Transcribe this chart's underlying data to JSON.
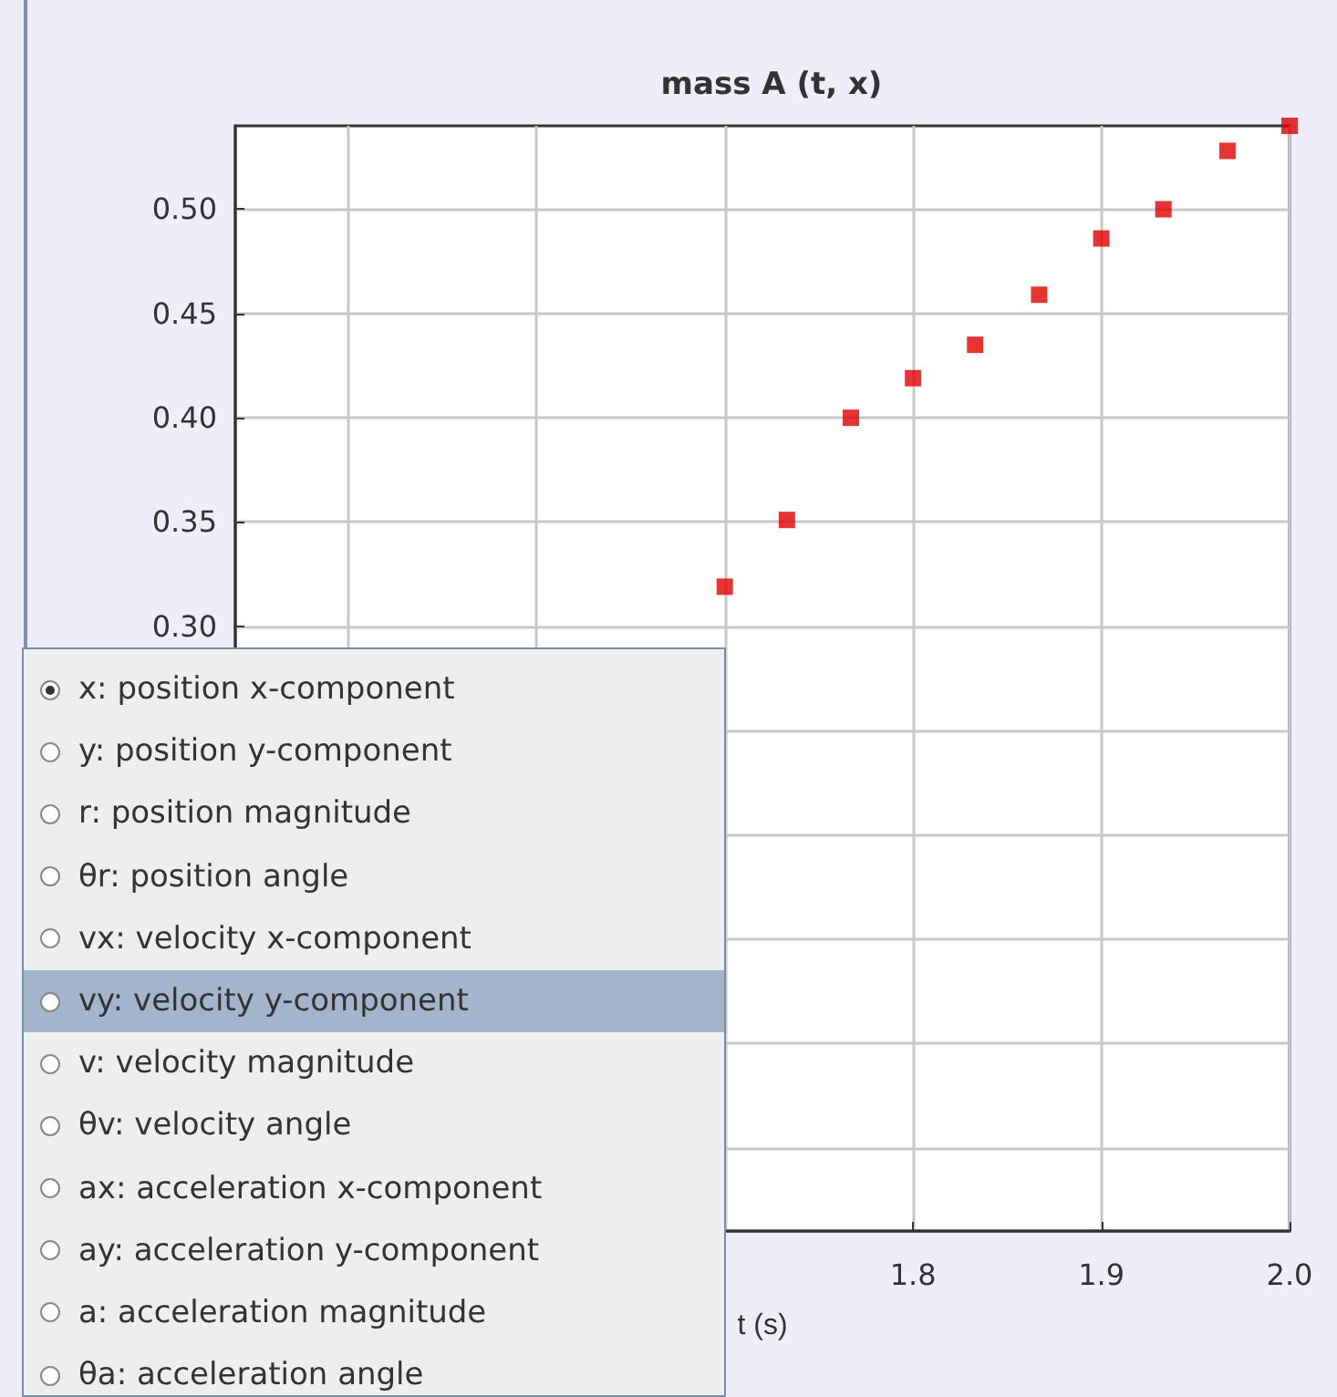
{
  "chart_data": {
    "type": "scatter",
    "title": "mass A (t, x)",
    "xlabel": "t (s)",
    "x": [
      1.7,
      1.733,
      1.767,
      1.8,
      1.833,
      1.867,
      1.9,
      1.933,
      1.967,
      2.0
    ],
    "series": [
      {
        "color": "#e00000",
        "values": [
          0.319,
          0.351,
          0.4,
          0.419,
          0.435,
          0.459,
          0.486,
          0.5,
          0.528,
          0.54
        ]
      }
    ],
    "xlim": [
      1.44,
      2.0
    ],
    "xticks": [
      {
        "value": 1.5,
        "label": null
      },
      {
        "value": 1.6,
        "label": null
      },
      {
        "value": 1.7,
        "label": null
      },
      1.8,
      1.9,
      {
        "value": 2.0,
        "label": "2.0"
      }
    ],
    "ylim": [
      0.01,
      0.54
    ],
    "yticks": [
      {
        "value": 0.05,
        "label": null
      },
      {
        "value": 0.1,
        "label": null
      },
      {
        "value": 0.15,
        "label": null
      },
      {
        "value": 0.2,
        "label": null
      },
      {
        "value": 0.25,
        "label": null
      },
      {
        "value": 0.3,
        "label": "0.30"
      },
      0.35,
      {
        "value": 0.4,
        "label": "0.40"
      },
      0.45,
      {
        "value": 0.5,
        "label": "0.50"
      }
    ],
    "grid": true,
    "marker": "square",
    "annotations": [
      "x: position x-component",
      "y: position y-component",
      "r: position magnitude",
      "θr: position angle",
      "vx: velocity x-component",
      "vy: velocity y-component",
      "v: velocity magnitude",
      "θv: velocity angle",
      "ax: acceleration x-component",
      "ay: acceleration y-component",
      "a: acceleration magnitude",
      "θa: acceleration angle"
    ]
  }
}
